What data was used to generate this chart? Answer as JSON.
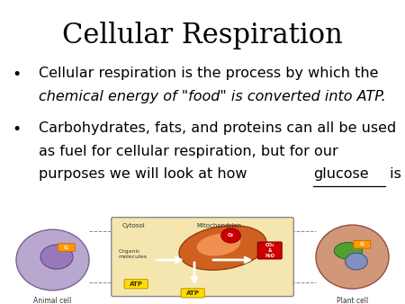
{
  "title": "Cellular Respiration",
  "title_fontsize": 22,
  "title_font": "DejaVu Serif",
  "background_color": "#ffffff",
  "text_color": "#000000",
  "bullet_symbol": "•",
  "bullet1_normal": "Cellular respiration is the process by which the",
  "bullet1_italic": "chemical energy of \"food\" is converted into ATP.",
  "bullet2_line1": "Carbohydrates, fats, and proteins can all be used",
  "bullet2_line2": "as fuel for cellular respiration, but for our",
  "bullet2_line3_pre": "purposes we will look at how ",
  "bullet2_line3_underline": "glucose",
  "bullet2_line3_post": " is used.",
  "font_size_body": 11.5,
  "diagram_box_color": "#f5e6b0",
  "animal_cell_color": "#b8a8d0",
  "plant_cell_color": "#d09878",
  "mitochondria_color": "#d06020"
}
